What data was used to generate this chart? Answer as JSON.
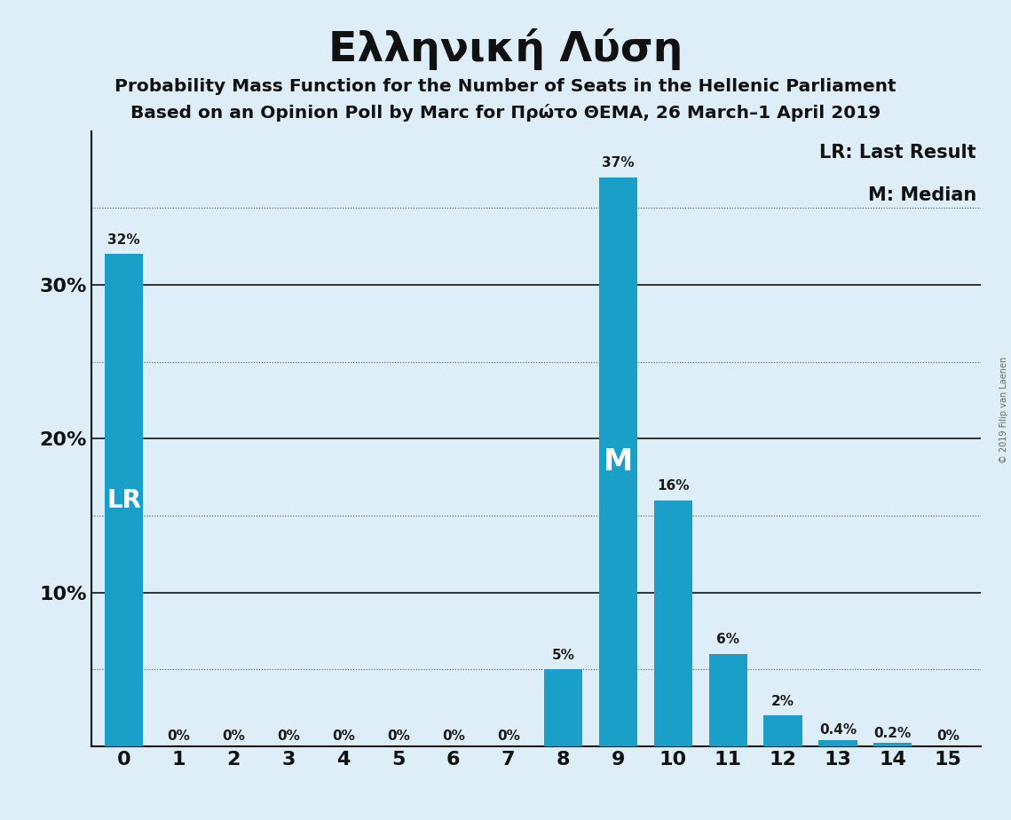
{
  "title": "Ελληνική Λύση",
  "subtitle1": "Probability Mass Function for the Number of Seats in the Hellenic Parliament",
  "subtitle2": "Based on an Opinion Poll by Marc for Πρώτο ΘΕΜΑ, 26 March–1 April 2019",
  "x_values": [
    0,
    1,
    2,
    3,
    4,
    5,
    6,
    7,
    8,
    9,
    10,
    11,
    12,
    13,
    14,
    15
  ],
  "y_values": [
    32,
    0,
    0,
    0,
    0,
    0,
    0,
    0,
    5,
    37,
    16,
    6,
    2,
    0.4,
    0.2,
    0
  ],
  "bar_color": "#1aa0c8",
  "background_color": "#ddeef8",
  "label_LR": "LR",
  "label_M": "M",
  "LR_bar": 0,
  "M_bar": 9,
  "legend_LR": "LR: Last Result",
  "legend_M": "M: Median",
  "solid_lines": [
    10,
    20,
    30
  ],
  "dotted_lines": [
    5,
    15,
    25,
    35
  ],
  "solid_ytick_labels": {
    "10": "10%",
    "20": "20%",
    "30": "30%"
  },
  "ylim": [
    0,
    40
  ],
  "copyright": "© 2019 Filip van Laenen",
  "bar_labels": [
    "32%",
    "0%",
    "0%",
    "0%",
    "0%",
    "0%",
    "0%",
    "0%",
    "5%",
    "37%",
    "16%",
    "6%",
    "2%",
    "0.4%",
    "0.2%",
    "0%"
  ]
}
